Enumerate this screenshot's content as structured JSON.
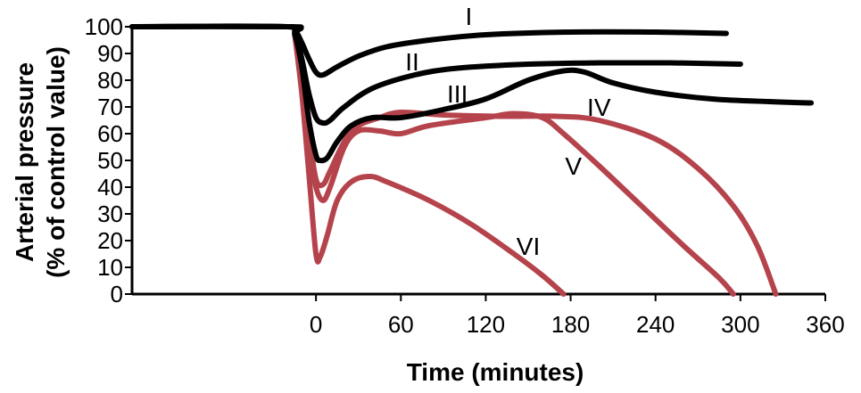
{
  "chart_data": {
    "type": "line",
    "title": "",
    "xlabel": "Time (minutes)",
    "ylabel_lines": [
      "Arterial pressure",
      "(% of control value)"
    ],
    "xlim": [
      -130,
      360
    ],
    "ylim": [
      0,
      100
    ],
    "x_ticks": [
      0,
      60,
      120,
      180,
      240,
      300,
      360
    ],
    "y_ticks": [
      0,
      10,
      20,
      30,
      40,
      50,
      60,
      70,
      80,
      90,
      100
    ],
    "grid": false,
    "legend": "none",
    "colors": {
      "survive": "#000000",
      "fatal": "#b5434c"
    },
    "series": [
      {
        "name": "I",
        "color_key": "survive",
        "points": [
          [
            -130,
            100
          ],
          [
            -20,
            100
          ],
          [
            -15,
            99
          ],
          [
            -10,
            94
          ],
          [
            -5,
            88
          ],
          [
            0,
            83
          ],
          [
            5,
            82
          ],
          [
            15,
            85
          ],
          [
            30,
            89
          ],
          [
            50,
            92.5
          ],
          [
            80,
            95
          ],
          [
            120,
            97
          ],
          [
            180,
            98
          ],
          [
            240,
            98
          ],
          [
            290,
            97.5
          ]
        ]
      },
      {
        "name": "II",
        "color_key": "survive",
        "points": [
          [
            -130,
            100
          ],
          [
            -20,
            100
          ],
          [
            -15,
            98
          ],
          [
            -10,
            88
          ],
          [
            -5,
            75
          ],
          [
            0,
            66
          ],
          [
            5,
            64
          ],
          [
            10,
            65
          ],
          [
            20,
            70
          ],
          [
            40,
            77
          ],
          [
            70,
            82
          ],
          [
            100,
            84.5
          ],
          [
            150,
            86
          ],
          [
            200,
            86.5
          ],
          [
            250,
            86.5
          ],
          [
            300,
            86
          ]
        ]
      },
      {
        "name": "III",
        "color_key": "survive",
        "points": [
          [
            -130,
            100
          ],
          [
            -20,
            100
          ],
          [
            -15,
            97
          ],
          [
            -10,
            85
          ],
          [
            -5,
            65
          ],
          [
            0,
            52
          ],
          [
            3,
            50
          ],
          [
            8,
            51
          ],
          [
            15,
            57
          ],
          [
            25,
            63
          ],
          [
            40,
            66
          ],
          [
            60,
            66
          ],
          [
            90,
            69
          ],
          [
            120,
            73
          ],
          [
            150,
            80
          ],
          [
            175,
            83.5
          ],
          [
            190,
            83
          ],
          [
            210,
            79
          ],
          [
            240,
            75.5
          ],
          [
            280,
            73
          ],
          [
            320,
            72
          ],
          [
            350,
            71.5
          ]
        ]
      },
      {
        "name": "IV",
        "color_key": "fatal",
        "points": [
          [
            -15,
            97
          ],
          [
            -10,
            82
          ],
          [
            -5,
            60
          ],
          [
            0,
            43
          ],
          [
            5,
            41
          ],
          [
            10,
            46
          ],
          [
            20,
            57
          ],
          [
            30,
            63
          ],
          [
            45,
            66
          ],
          [
            60,
            68
          ],
          [
            90,
            67
          ],
          [
            130,
            66.5
          ],
          [
            170,
            66.5
          ],
          [
            200,
            65
          ],
          [
            240,
            58
          ],
          [
            270,
            47
          ],
          [
            295,
            33
          ],
          [
            312,
            18
          ],
          [
            325,
            0
          ]
        ]
      },
      {
        "name": "V",
        "color_key": "fatal",
        "points": [
          [
            -15,
            97
          ],
          [
            -10,
            80
          ],
          [
            -5,
            55
          ],
          [
            0,
            40
          ],
          [
            5,
            35
          ],
          [
            10,
            40
          ],
          [
            20,
            55
          ],
          [
            30,
            61
          ],
          [
            45,
            61
          ],
          [
            60,
            60
          ],
          [
            80,
            63
          ],
          [
            120,
            66
          ],
          [
            140,
            67.5
          ],
          [
            160,
            66
          ],
          [
            175,
            60
          ],
          [
            200,
            48
          ],
          [
            230,
            33
          ],
          [
            260,
            18
          ],
          [
            285,
            6
          ],
          [
            295,
            0
          ]
        ]
      },
      {
        "name": "VI",
        "color_key": "fatal",
        "points": [
          [
            -15,
            97
          ],
          [
            -10,
            75
          ],
          [
            -5,
            45
          ],
          [
            0,
            15
          ],
          [
            3,
            14
          ],
          [
            8,
            22
          ],
          [
            15,
            35
          ],
          [
            25,
            42
          ],
          [
            38,
            44
          ],
          [
            50,
            42
          ],
          [
            80,
            35
          ],
          [
            110,
            26
          ],
          [
            140,
            15
          ],
          [
            160,
            7
          ],
          [
            175,
            0
          ]
        ]
      }
    ],
    "series_labels": [
      {
        "text": "I",
        "at": [
          108,
          104
        ]
      },
      {
        "text": "II",
        "at": [
          68,
          87
        ]
      },
      {
        "text": "III",
        "at": [
          100,
          75
        ]
      },
      {
        "text": "IV",
        "at": [
          200,
          70
        ]
      },
      {
        "text": "V",
        "at": [
          182,
          48
        ]
      },
      {
        "text": "VI",
        "at": [
          150,
          18
        ]
      }
    ]
  }
}
